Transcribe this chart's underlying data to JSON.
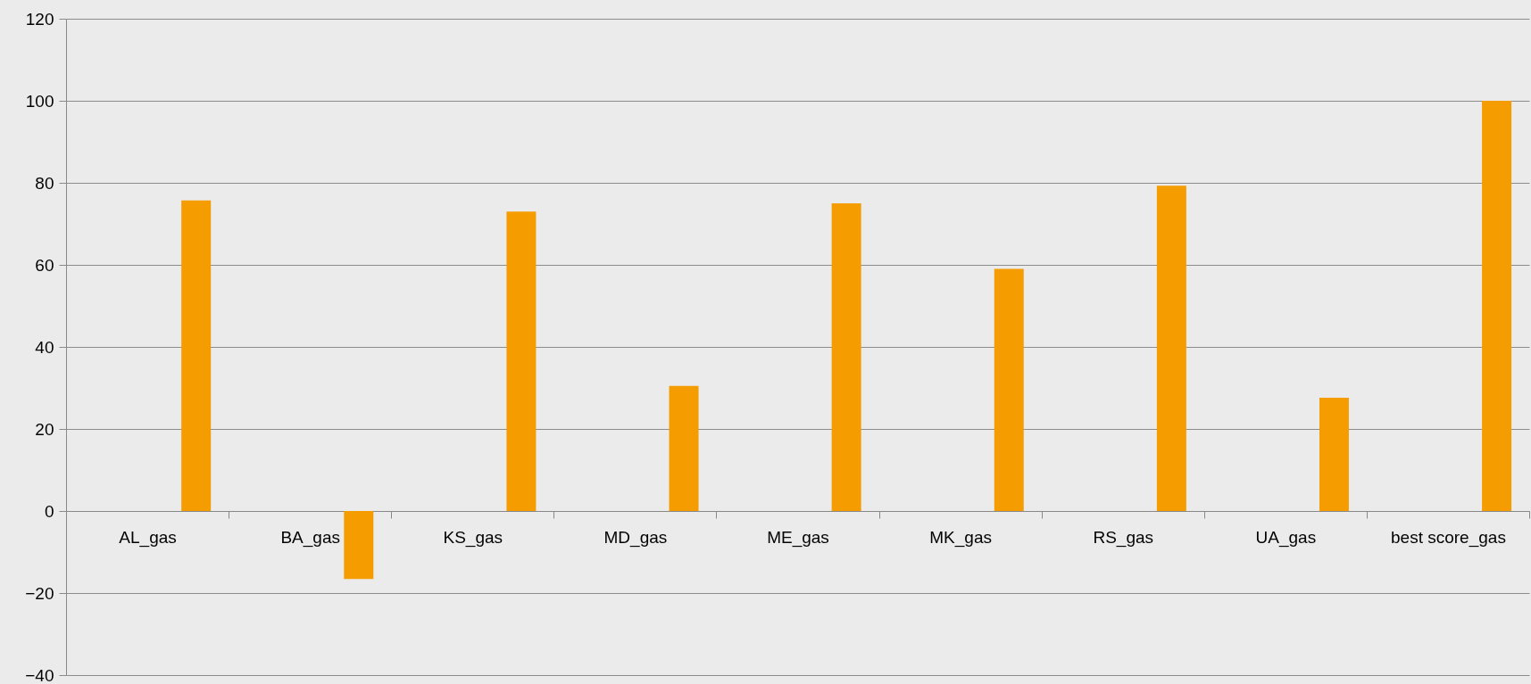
{
  "chart_data": {
    "type": "bar",
    "categories": [
      "AL_gas",
      "BA_gas",
      "KS_gas",
      "MD_gas",
      "ME_gas",
      "MK_gas",
      "RS_gas",
      "UA_gas",
      "best score_gas"
    ],
    "values": [
      75.7,
      -16.6,
      73,
      30.5,
      75,
      59,
      79.3,
      27.6,
      100
    ],
    "color": "#f59c00",
    "ylim": [
      -40,
      120
    ],
    "yticks": [
      -40,
      -20,
      0,
      20,
      40,
      60,
      80,
      100,
      120
    ],
    "grid": "y",
    "legend": false
  }
}
